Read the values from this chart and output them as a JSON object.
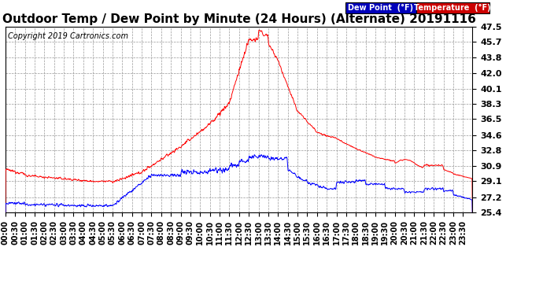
{
  "title": "Outdoor Temp / Dew Point by Minute (24 Hours) (Alternate) 20191116",
  "copyright": "Copyright 2019 Cartronics.com",
  "legend_dew": "Dew Point  (°F)",
  "legend_temp": "Temperature  (°F)",
  "dew_color": "#0000ff",
  "temp_color": "#ff0000",
  "bg_color": "#ffffff",
  "legend_dew_bg": "#0000bb",
  "legend_temp_bg": "#cc0000",
  "ylim": [
    25.4,
    47.5
  ],
  "yticks": [
    25.4,
    27.2,
    29.1,
    30.9,
    32.8,
    34.6,
    36.5,
    38.3,
    40.1,
    42.0,
    43.8,
    45.7,
    47.5
  ],
  "n_minutes": 1440,
  "title_fontsize": 11,
  "tick_fontsize": 8,
  "copyright_fontsize": 7
}
